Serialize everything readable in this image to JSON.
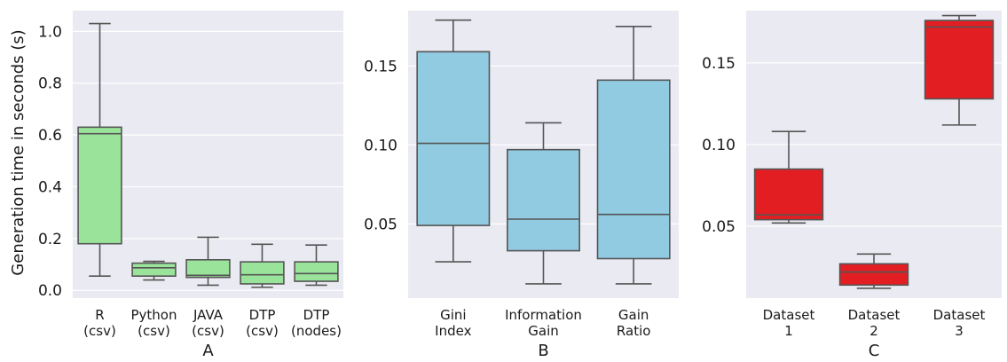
{
  "chart_data": [
    {
      "type": "boxplot",
      "panel_label": "A",
      "ylabel": "Generation time in seconds (s)",
      "ylim": [
        -0.03,
        1.08
      ],
      "yticks": [
        0.0,
        0.2,
        0.4,
        0.6,
        0.8,
        1.0
      ],
      "ytick_labels": [
        "0.0",
        "0.2",
        "0.4",
        "0.6",
        "0.8",
        "1.0"
      ],
      "color": "#99e49a",
      "grid": true,
      "categories": [
        [
          "R",
          "(csv)"
        ],
        [
          "Python",
          "(csv)"
        ],
        [
          "JAVA",
          "(csv)"
        ],
        [
          "DTP",
          "(csv)"
        ],
        [
          "DTP",
          "(nodes)"
        ]
      ],
      "boxes": [
        {
          "whislo": 0.055,
          "q1": 0.18,
          "med": 0.605,
          "q3": 0.63,
          "whishi": 1.03
        },
        {
          "whislo": 0.04,
          "q1": 0.055,
          "med": 0.087,
          "q3": 0.105,
          "whishi": 0.112
        },
        {
          "whislo": 0.02,
          "q1": 0.05,
          "med": 0.058,
          "q3": 0.118,
          "whishi": 0.205
        },
        {
          "whislo": 0.012,
          "q1": 0.025,
          "med": 0.06,
          "q3": 0.11,
          "whishi": 0.178
        },
        {
          "whislo": 0.02,
          "q1": 0.035,
          "med": 0.065,
          "q3": 0.11,
          "whishi": 0.175
        }
      ]
    },
    {
      "type": "boxplot",
      "panel_label": "B",
      "ylabel": "",
      "ylim": [
        0.003,
        0.185
      ],
      "yticks": [
        0.05,
        0.1,
        0.15
      ],
      "ytick_labels": [
        "0.05",
        "0.10",
        "0.15"
      ],
      "color": "#90cbe2",
      "grid": true,
      "categories": [
        [
          "Gini",
          "Index"
        ],
        [
          "Information",
          "Gain"
        ],
        [
          "Gain",
          "Ratio"
        ]
      ],
      "boxes": [
        {
          "whislo": 0.026,
          "q1": 0.049,
          "med": 0.101,
          "q3": 0.159,
          "whishi": 0.179
        },
        {
          "whislo": 0.012,
          "q1": 0.033,
          "med": 0.053,
          "q3": 0.097,
          "whishi": 0.114
        },
        {
          "whislo": 0.012,
          "q1": 0.028,
          "med": 0.056,
          "q3": 0.141,
          "whishi": 0.175
        }
      ]
    },
    {
      "type": "boxplot",
      "panel_label": "C",
      "ylabel": "",
      "ylim": [
        0.006,
        0.182
      ],
      "yticks": [
        0.05,
        0.1,
        0.15
      ],
      "ytick_labels": [
        "0.05",
        "0.10",
        "0.15"
      ],
      "color": "#e31e22",
      "grid": true,
      "categories": [
        [
          "Dataset",
          "1"
        ],
        [
          "Dataset",
          "2"
        ],
        [
          "Dataset",
          "3"
        ]
      ],
      "boxes": [
        {
          "whislo": 0.052,
          "q1": 0.054,
          "med": 0.057,
          "q3": 0.085,
          "whishi": 0.108
        },
        {
          "whislo": 0.012,
          "q1": 0.014,
          "med": 0.022,
          "q3": 0.027,
          "whishi": 0.033
        },
        {
          "whislo": 0.112,
          "q1": 0.128,
          "med": 0.172,
          "q3": 0.176,
          "whishi": 0.179
        }
      ]
    }
  ],
  "style": {
    "background": "#eaeaf2",
    "grid_color": "#ffffff",
    "box_edge": "#555555"
  }
}
